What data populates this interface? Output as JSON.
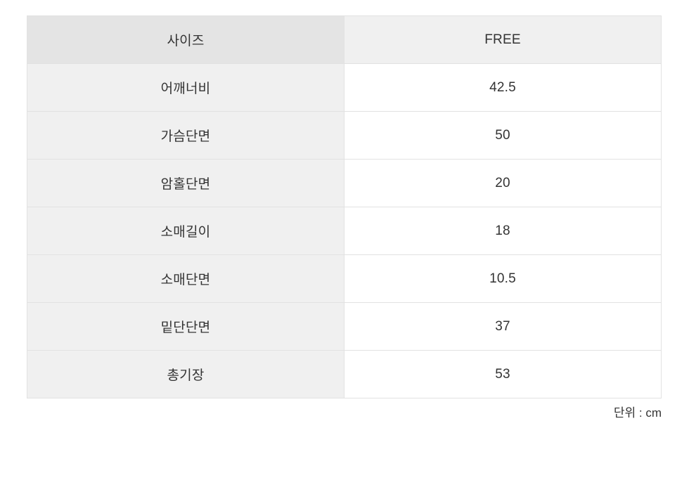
{
  "table": {
    "header": {
      "label": "사이즈",
      "value": "FREE"
    },
    "rows": [
      {
        "label": "어깨너비",
        "value": "42.5"
      },
      {
        "label": "가슴단면",
        "value": "50"
      },
      {
        "label": "암홀단면",
        "value": "20"
      },
      {
        "label": "소매길이",
        "value": "18"
      },
      {
        "label": "소매단면",
        "value": "10.5"
      },
      {
        "label": "밑단단면",
        "value": "37"
      },
      {
        "label": "총기장",
        "value": "53"
      }
    ]
  },
  "unit_note": "단위 : cm",
  "colors": {
    "header_label_bg": "#e4e4e4",
    "header_value_bg": "#f0f0f0",
    "label_bg": "#f0f0f0",
    "value_bg": "#ffffff",
    "border": "#e2e2e2",
    "text": "#333333"
  }
}
